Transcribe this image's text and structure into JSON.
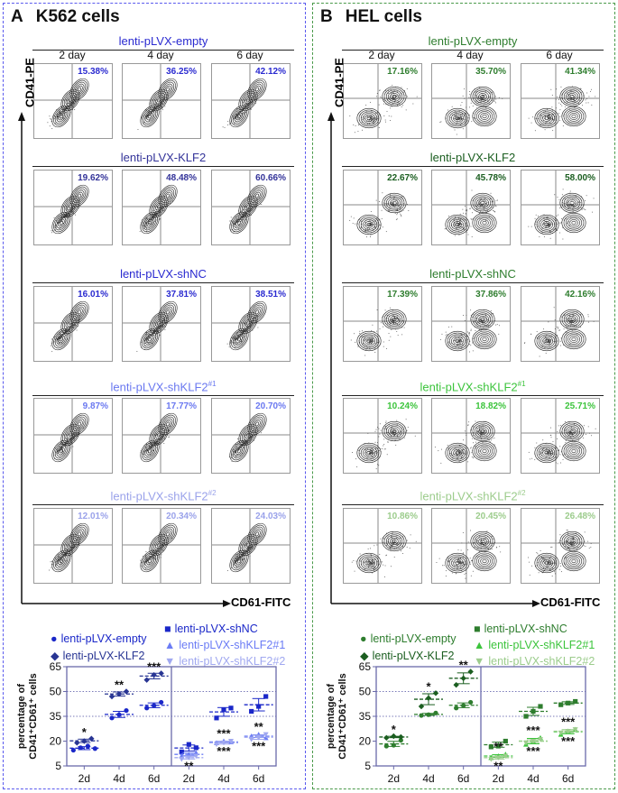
{
  "panels": [
    {
      "letter": "A",
      "title": "K562 cells",
      "y_axis": "CD41-PE",
      "x_axis": "CD61-FITC",
      "days": [
        "2 day",
        "4 day",
        "6 day"
      ],
      "groups": [
        {
          "name": "lenti-pLVX-empty",
          "color": "#2a2ad0",
          "pct": [
            "15.38%",
            "36.25%",
            "42.12%"
          ]
        },
        {
          "name": "lenti-pLVX-KLF2",
          "color": "#333399",
          "pct": [
            "19.62%",
            "48.48%",
            "60.66%"
          ]
        },
        {
          "name": "lenti-pLVX-shNC",
          "color": "#2a2ad0",
          "pct": [
            "16.01%",
            "37.81%",
            "38.51%"
          ]
        },
        {
          "name": "lenti-pLVX-shKLF2",
          "sup": "#1",
          "color": "#6a78f0",
          "pct": [
            "9.87%",
            "17.77%",
            "20.70%"
          ]
        },
        {
          "name": "lenti-pLVX-shKLF2",
          "sup": "#2",
          "color": "#9aa2ea",
          "pct": [
            "12.01%",
            "20.34%",
            "24.03%"
          ]
        }
      ]
    },
    {
      "letter": "B",
      "title": "HEL cells",
      "y_axis": "CD41-PE",
      "x_axis": "CD61-FITC",
      "days": [
        "2 day",
        "4 day",
        "6 day"
      ],
      "groups": [
        {
          "name": "lenti-pLVX-empty",
          "color": "#2e7d2e",
          "pct": [
            "17.16%",
            "35.70%",
            "41.34%"
          ]
        },
        {
          "name": "lenti-pLVX-KLF2",
          "color": "#1b5e20",
          "pct": [
            "22.67%",
            "45.78%",
            "58.00%"
          ]
        },
        {
          "name": "lenti-pLVX-shNC",
          "color": "#2e7d2e",
          "pct": [
            "17.39%",
            "37.86%",
            "42.16%"
          ]
        },
        {
          "name": "lenti-pLVX-shKLF2",
          "sup": "#1",
          "color": "#3cc43c",
          "pct": [
            "10.24%",
            "18.82%",
            "25.71%"
          ]
        },
        {
          "name": "lenti-pLVX-shKLF2",
          "sup": "#2",
          "color": "#9ccc8c",
          "pct": [
            "10.86%",
            "20.45%",
            "26.48%"
          ]
        }
      ]
    }
  ],
  "chart_data": [
    {
      "type": "scatter",
      "ylabel": "percentage of CD41+CD61+ cells",
      "ylim": [
        5,
        65
      ],
      "yticks": [
        5,
        20,
        35,
        50,
        65
      ],
      "grid": "dotted at 35, 50",
      "categories": [
        "2d",
        "4d",
        "6d"
      ],
      "left": [
        {
          "name": "lenti-pLVX-empty",
          "marker": "circle",
          "color": "#1a27c8",
          "values": [
            [
              14.5,
              16,
              17,
              15.5
            ],
            [
              34,
              36,
              38.5
            ],
            [
              40,
              41.5,
              43.5
            ]
          ]
        },
        {
          "name": "lenti-pLVX-KLF2",
          "marker": "diamond",
          "color": "#283593",
          "values": [
            [
              19,
              20,
              21.5
            ],
            [
              47,
              48.5,
              50
            ],
            [
              57,
              60,
              61
            ]
          ]
        }
      ],
      "left_stars": [
        "*",
        "**",
        "***"
      ],
      "right": [
        {
          "name": "lenti-pLVX-shNC",
          "marker": "square",
          "color": "#1a27c8",
          "values": [
            [
              13.5,
              18,
              16
            ],
            [
              34,
              39,
              40
            ],
            [
              38,
              41,
              47
            ]
          ]
        },
        {
          "name": "lenti-pLVX-shKLF2#1",
          "marker": "triangle-up",
          "color": "#6b7cf5",
          "values": [
            [
              11,
              12,
              13
            ],
            [
              19,
              20,
              19.5
            ],
            [
              23,
              24,
              22
            ]
          ]
        },
        {
          "name": "lenti-pLVX-shKLF2#2",
          "marker": "triangle-down",
          "color": "#a0a8f0",
          "values": [
            [
              9,
              10,
              11
            ],
            [
              18,
              19,
              20
            ],
            [
              21,
              22,
              24
            ]
          ]
        }
      ],
      "right_stars_above": [
        "",
        "***",
        "**"
      ],
      "right_stars_below": [
        "**",
        "***",
        "***"
      ]
    },
    {
      "type": "scatter",
      "ylabel": "percentage of CD41+CD61+ cells",
      "ylim": [
        5,
        65
      ],
      "yticks": [
        5,
        20,
        35,
        50,
        65
      ],
      "grid": "dotted at 35, 50",
      "categories": [
        "2d",
        "4d",
        "6d"
      ],
      "left": [
        {
          "name": "lenti-pLVX-empty",
          "marker": "circle",
          "color": "#2e7d2e",
          "values": [
            [
              17,
              17.5,
              20.5
            ],
            [
              35.5,
              36,
              37
            ],
            [
              40,
              41.5,
              43.5
            ]
          ]
        },
        {
          "name": "lenti-pLVX-KLF2",
          "marker": "diamond",
          "color": "#1b5e20",
          "values": [
            [
              22,
              23,
              22.5
            ],
            [
              41,
              46,
              49
            ],
            [
              54,
              58,
              62
            ]
          ]
        }
      ],
      "left_stars": [
        "*",
        "*",
        "**"
      ],
      "right": [
        {
          "name": "lenti-pLVX-shNC",
          "marker": "square",
          "color": "#2e7d2e",
          "values": [
            [
              16.5,
              17,
              20
            ],
            [
              35,
              38,
              41
            ],
            [
              42,
              43,
              44
            ]
          ]
        },
        {
          "name": "lenti-pLVX-shKLF2#1",
          "marker": "triangle-up",
          "color": "#3cc43c",
          "values": [
            [
              10,
              11,
              12
            ],
            [
              18,
              20,
              22
            ],
            [
              24,
              26,
              27
            ]
          ]
        },
        {
          "name": "lenti-pLVX-shKLF2#2",
          "marker": "triangle-down",
          "color": "#9ccc8c",
          "values": [
            [
              9,
              10,
              11
            ],
            [
              19,
              20,
              21
            ],
            [
              25,
              26,
              27
            ]
          ]
        }
      ],
      "right_stars_above": [
        "**",
        "***",
        "***"
      ],
      "right_stars_below": [
        "**",
        "***",
        "***"
      ]
    }
  ]
}
